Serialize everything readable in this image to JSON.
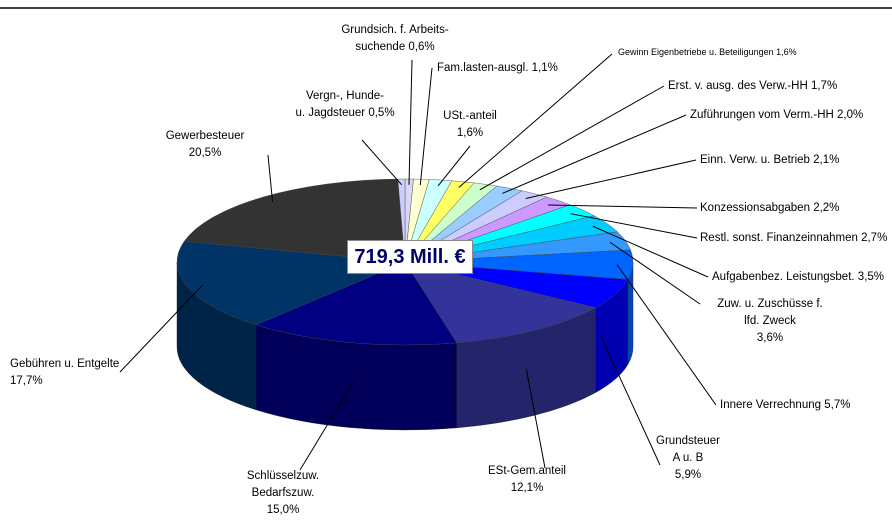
{
  "chart_data": {
    "type": "pie3d",
    "center_label": "719,3 Mill. €",
    "categories": [
      "Grundsich. f. Arbeits-\nsuchende",
      "Fam.lasten-ausgl.",
      "USt.-anteil",
      "Gewinn Eigenbetriebe u. Beteiligungen",
      "Erst. v. ausg. des Verw.-HH",
      "Zuführungen vom Verm.-HH",
      "Einn. Verw. u. Betrieb",
      "Konzessionsabgaben",
      "Restl. sonst. Finanzeinnahmen",
      "Aufgabenbez. Leistungsbet.",
      "Zuw. u. Zuschüsse f. lfd. Zweck",
      "Innere Verrechnung",
      "Grundsteuer\nA u. B",
      "ESt-Gem.anteil",
      "Schlüsselzuw.\nBedarfszuw.",
      "Gebühren u. Entgelte",
      "Gewerbesteuer",
      "Vergn-, Hunde-\nu. Jagdsteuer"
    ],
    "values": [
      0.6,
      1.1,
      1.6,
      1.6,
      1.7,
      2.0,
      2.1,
      2.2,
      2.7,
      3.5,
      3.6,
      5.7,
      5.9,
      12.1,
      15.0,
      17.7,
      20.5,
      0.5
    ],
    "value_labels": [
      "0,6%",
      "1,1%",
      "1,6%",
      "1,6%",
      "1,7%",
      "2,0%",
      "2,1%",
      "2,2%",
      "2,7%",
      "3,5%",
      "3,6%",
      "5,7%",
      "5,9%",
      "12,1%",
      "15,0%",
      "17,7%",
      "20,5%",
      "0,5%"
    ],
    "colors": [
      "#d8d8f4",
      "#ffffd0",
      "#ccffff",
      "#ffff66",
      "#ccffcc",
      "#99ccff",
      "#99ccff",
      "#ccccff",
      "#cc99ff",
      "#00ffff",
      "#00ccff",
      "#3399ff",
      "#0066ff",
      "#0000ff",
      "#666699",
      "#333399",
      "#000080",
      "#003366",
      "#333333",
      "#ccccff"
    ]
  }
}
